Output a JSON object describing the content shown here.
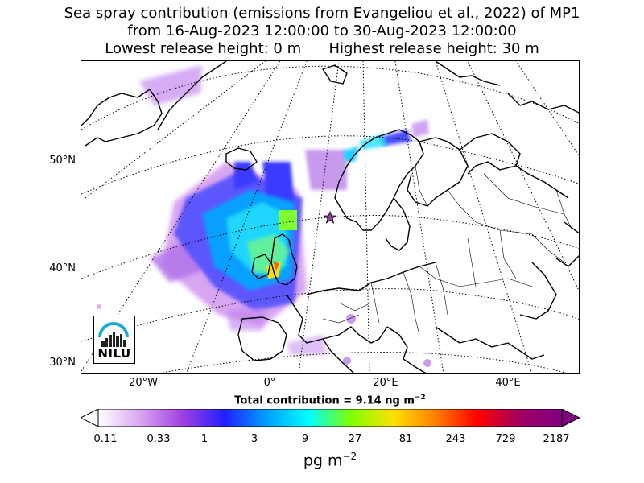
{
  "title": {
    "line1": "Sea spray contribution (emissions from Evangeliou et al., 2022) of MP1",
    "line2": "from 16-Aug-2023 12:00:00 to 30-Aug-2023 12:00:00",
    "line3": "Lowest release height: 0 m      Highest release height: 30 m"
  },
  "map": {
    "lat_labels": [
      "50°N",
      "40°N",
      "30°N"
    ],
    "lon_labels": [
      "20°W",
      "0°",
      "20°E",
      "40°E"
    ],
    "marker_icon": "star-icon",
    "logo_text": "NILU"
  },
  "total_contribution": "Total contribution = 9.14 ng m",
  "total_exp": "−2",
  "colorbar": {
    "ticks": [
      "0.11",
      "0.33",
      "1",
      "3",
      "9",
      "27",
      "81",
      "243",
      "729",
      "2187"
    ],
    "unit": "pg m",
    "unit_exp": "−2",
    "colors": [
      "#ffffff",
      "#d9a6f0",
      "#a040e0",
      "#2020ff",
      "#00a0ff",
      "#00ffff",
      "#80ff00",
      "#ffe000",
      "#ff8000",
      "#ff0000",
      "#a00060",
      "#800080"
    ]
  }
}
